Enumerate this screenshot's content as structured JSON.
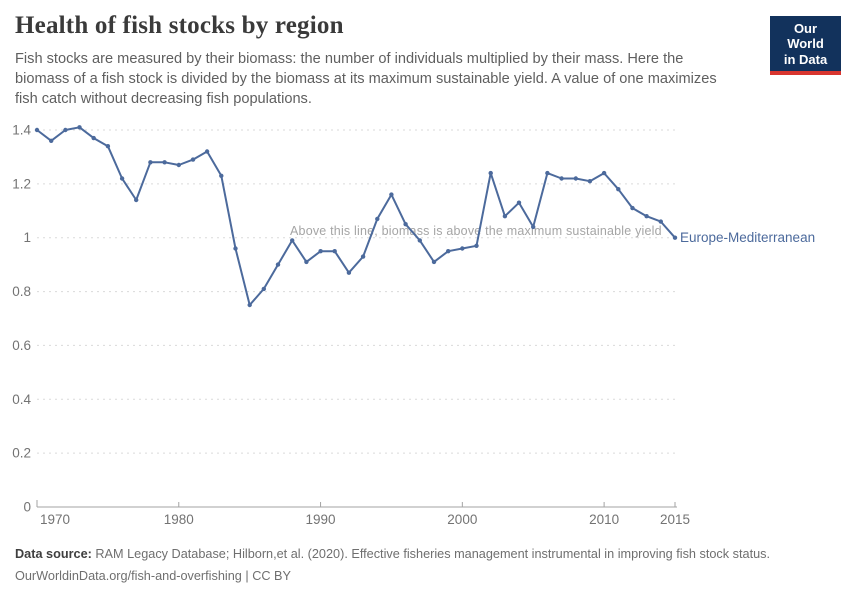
{
  "header": {
    "title": "Health of fish stocks by region",
    "subtitle": "Fish stocks are measured by their biomass: the number of individuals multiplied by their mass. Here the biomass of a fish stock is divided by the biomass at its maximum sustainable yield. A value of one maximizes fish catch without decreasing fish populations."
  },
  "logo": {
    "line1": "Our World",
    "line2": "in Data",
    "bg_color": "#12325c",
    "accent_color": "#d8352f"
  },
  "chart_data": {
    "type": "line",
    "title": "Health of fish stocks by region",
    "xlabel": "",
    "ylabel": "",
    "xlim": [
      1970,
      2015
    ],
    "ylim": [
      0,
      1.4
    ],
    "xticks": [
      1970,
      1980,
      1990,
      2000,
      2010,
      2015
    ],
    "yticks": [
      0,
      0.2,
      0.4,
      0.6,
      0.8,
      1,
      1.2,
      1.4
    ],
    "grid": "horizontal-dashed",
    "legend_position": "end-of-line-label",
    "annotation": "Above this line, biomass is above the maximum sustainable yield",
    "series": [
      {
        "name": "Europe-Mediterranean",
        "color": "#4c6a9c",
        "x": [
          1970,
          1971,
          1972,
          1973,
          1974,
          1975,
          1976,
          1977,
          1978,
          1979,
          1980,
          1981,
          1982,
          1983,
          1984,
          1985,
          1986,
          1987,
          1988,
          1989,
          1990,
          1991,
          1992,
          1993,
          1994,
          1995,
          1996,
          1997,
          1998,
          1999,
          2000,
          2001,
          2002,
          2003,
          2004,
          2005,
          2006,
          2007,
          2008,
          2009,
          2010,
          2011,
          2012,
          2013,
          2014,
          2015
        ],
        "values": [
          1.4,
          1.36,
          1.4,
          1.41,
          1.37,
          1.34,
          1.22,
          1.14,
          1.28,
          1.28,
          1.27,
          1.29,
          1.32,
          1.23,
          0.96,
          0.75,
          0.81,
          0.9,
          0.99,
          0.91,
          0.95,
          0.95,
          0.87,
          0.93,
          1.07,
          1.16,
          1.05,
          0.99,
          0.91,
          0.95,
          0.96,
          0.97,
          1.24,
          1.08,
          1.13,
          1.04,
          1.24,
          1.22,
          1.22,
          1.21,
          1.24,
          1.18,
          1.11,
          1.08,
          1.06,
          1.0
        ]
      }
    ],
    "style": {
      "gridline_color": "#dadada",
      "axis_color": "#a3a3a3",
      "tick_label_color": "#737373",
      "annotation_color": "#a5a5a5"
    }
  },
  "footer": {
    "source_label": "Data source:",
    "source_text": " RAM Legacy Database; Hilborn,et al. (2020). Effective fisheries management instrumental in improving fish stock status.",
    "link": "OurWorldinData.org/fish-and-overfishing",
    "separator": " | ",
    "license": "CC BY"
  }
}
